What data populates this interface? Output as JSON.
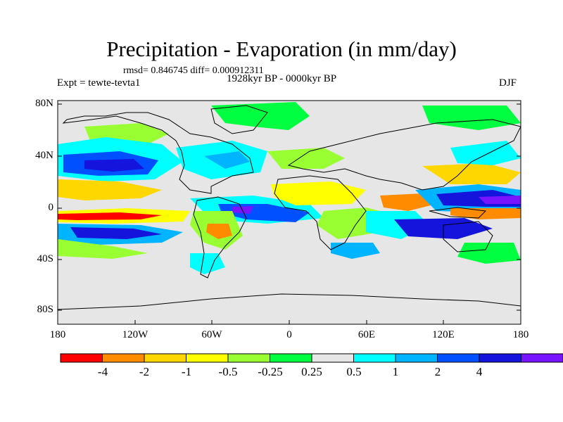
{
  "title": "Precipitation - Evaporation (in mm/day)",
  "stats": "rmsd= 0.846745  diff= 0.000912311",
  "subtitle": "1928kyr BP - 0000kyr BP",
  "experiment": "Expt = tewte-tevta1",
  "season": "DJF",
  "lat_labels": [
    "80N",
    "40N",
    "0",
    "40S",
    "80S"
  ],
  "lon_labels": [
    "180",
    "120W",
    "60W",
    "0",
    "60E",
    "120E",
    "180"
  ],
  "colorbar": {
    "labels": [
      "-4",
      "-2",
      "-1",
      "-0.5",
      "-0.25",
      "0.25",
      "0.5",
      "1",
      "2",
      "4"
    ],
    "colors": [
      "#ff0000",
      "#ff8c00",
      "#ffd700",
      "#ffff00",
      "#9aff32",
      "#00ff40",
      "#e6e6e6",
      "#00ffff",
      "#00b4ff",
      "#0050ff",
      "#1414dc",
      "#7814ff"
    ]
  }
}
